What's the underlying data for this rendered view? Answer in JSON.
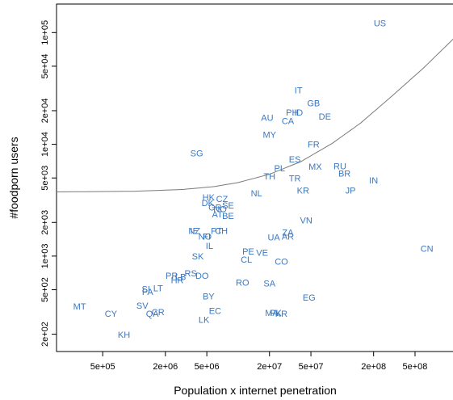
{
  "chart_data": {
    "type": "scatter",
    "title": "",
    "xlabel": "Population x internet penetration",
    "ylabel": "#foodporn users",
    "x_scale": "log",
    "y_scale": "log",
    "xlim": [
      180000,
      1200000000
    ],
    "ylim": [
      140,
      180000
    ],
    "x_ticks": [
      {
        "value": 500000,
        "label": "5e+05"
      },
      {
        "value": 2000000,
        "label": "2e+06"
      },
      {
        "value": 5000000,
        "label": "5e+06"
      },
      {
        "value": 20000000,
        "label": "2e+07"
      },
      {
        "value": 50000000,
        "label": "5e+07"
      },
      {
        "value": 200000000,
        "label": "2e+08"
      },
      {
        "value": 500000000,
        "label": "5e+08"
      }
    ],
    "y_ticks": [
      {
        "value": 200,
        "label": "2e+02"
      },
      {
        "value": 500,
        "label": "5e+02"
      },
      {
        "value": 1000,
        "label": "1e+03"
      },
      {
        "value": 2000,
        "label": "2e+03"
      },
      {
        "value": 5000,
        "label": "5e+03"
      },
      {
        "value": 10000,
        "label": "1e+04"
      },
      {
        "value": 20000,
        "label": "2e+04"
      },
      {
        "value": 50000,
        "label": "5e+04"
      },
      {
        "value": 100000,
        "label": "1e+05"
      }
    ],
    "label_color": "#3a78c2",
    "curve_color": "#7a7a7a",
    "points": [
      {
        "label": "US",
        "x": 230000000,
        "y": 120000
      },
      {
        "label": "IT",
        "x": 38000000,
        "y": 30000
      },
      {
        "label": "GB",
        "x": 53000000,
        "y": 23000
      },
      {
        "label": "AU",
        "x": 19000000,
        "y": 17000
      },
      {
        "label": "PH",
        "x": 33000000,
        "y": 19000
      },
      {
        "label": "ID",
        "x": 38000000,
        "y": 19000
      },
      {
        "label": "CA",
        "x": 30000000,
        "y": 16000
      },
      {
        "label": "DE",
        "x": 68000000,
        "y": 17500
      },
      {
        "label": "MY",
        "x": 20000000,
        "y": 12000
      },
      {
        "label": "FR",
        "x": 53000000,
        "y": 9800
      },
      {
        "label": "SG",
        "x": 4000000,
        "y": 8200
      },
      {
        "label": "ES",
        "x": 35000000,
        "y": 7200
      },
      {
        "label": "MX",
        "x": 55000000,
        "y": 6200
      },
      {
        "label": "RU",
        "x": 95000000,
        "y": 6300
      },
      {
        "label": "PL",
        "x": 25000000,
        "y": 6000
      },
      {
        "label": "BR",
        "x": 105000000,
        "y": 5400
      },
      {
        "label": "TH",
        "x": 20000000,
        "y": 5100
      },
      {
        "label": "TR",
        "x": 35000000,
        "y": 4900
      },
      {
        "label": "IN",
        "x": 200000000,
        "y": 4700
      },
      {
        "label": "KR",
        "x": 42000000,
        "y": 3800
      },
      {
        "label": "JP",
        "x": 120000000,
        "y": 3800
      },
      {
        "label": "NL",
        "x": 15000000,
        "y": 3600
      },
      {
        "label": "HK",
        "x": 5200000,
        "y": 3300
      },
      {
        "label": "CZ",
        "x": 7000000,
        "y": 3200
      },
      {
        "label": "DK",
        "x": 5100000,
        "y": 2950
      },
      {
        "label": "SE",
        "x": 8000000,
        "y": 2800
      },
      {
        "label": "GR",
        "x": 6000000,
        "y": 2680
      },
      {
        "label": "NO",
        "x": 6700000,
        "y": 2600
      },
      {
        "label": "AT",
        "x": 6300000,
        "y": 2330
      },
      {
        "label": "BE",
        "x": 8000000,
        "y": 2250
      },
      {
        "label": "VN",
        "x": 45000000,
        "y": 2050
      },
      {
        "label": "NZ",
        "x": 3800000,
        "y": 1650
      },
      {
        "label": "PT",
        "x": 6200000,
        "y": 1650
      },
      {
        "label": "CH",
        "x": 6900000,
        "y": 1650
      },
      {
        "label": "IE",
        "x": 3800000,
        "y": 1650
      },
      {
        "label": "NO",
        "x": 4800000,
        "y": 1480
      },
      {
        "label": "FI",
        "x": 5000000,
        "y": 1480
      },
      {
        "label": "ZA",
        "x": 30000000,
        "y": 1600
      },
      {
        "label": "UA",
        "x": 22000000,
        "y": 1450
      },
      {
        "label": "AR",
        "x": 30000000,
        "y": 1480
      },
      {
        "label": "IL",
        "x": 5300000,
        "y": 1220
      },
      {
        "label": "CN",
        "x": 650000000,
        "y": 1150
      },
      {
        "label": "PE",
        "x": 12500000,
        "y": 1080
      },
      {
        "label": "VE",
        "x": 17000000,
        "y": 1060
      },
      {
        "label": "SK",
        "x": 4100000,
        "y": 980
      },
      {
        "label": "CL",
        "x": 12000000,
        "y": 920
      },
      {
        "label": "CO",
        "x": 26000000,
        "y": 880
      },
      {
        "label": "RS",
        "x": 3500000,
        "y": 690
      },
      {
        "label": "PR",
        "x": 2300000,
        "y": 660
      },
      {
        "label": "LB",
        "x": 2800000,
        "y": 640
      },
      {
        "label": "DO",
        "x": 4500000,
        "y": 660
      },
      {
        "label": "HR",
        "x": 2600000,
        "y": 600
      },
      {
        "label": "RO",
        "x": 11000000,
        "y": 570
      },
      {
        "label": "SA",
        "x": 20000000,
        "y": 560
      },
      {
        "label": "SI",
        "x": 1300000,
        "y": 500
      },
      {
        "label": "LT",
        "x": 1700000,
        "y": 510
      },
      {
        "label": "PA",
        "x": 1350000,
        "y": 470
      },
      {
        "label": "BY",
        "x": 5200000,
        "y": 430
      },
      {
        "label": "EG",
        "x": 48000000,
        "y": 420
      },
      {
        "label": "MT",
        "x": 300000,
        "y": 350
      },
      {
        "label": "SV",
        "x": 1200000,
        "y": 355
      },
      {
        "label": "CY",
        "x": 600000,
        "y": 300
      },
      {
        "label": "QA",
        "x": 1500000,
        "y": 300
      },
      {
        "label": "CR",
        "x": 1700000,
        "y": 310
      },
      {
        "label": "EC",
        "x": 6000000,
        "y": 320
      },
      {
        "label": "MA",
        "x": 21000000,
        "y": 305
      },
      {
        "label": "PK",
        "x": 23000000,
        "y": 305
      },
      {
        "label": "KR",
        "x": 26000000,
        "y": 300
      },
      {
        "label": "LK",
        "x": 4700000,
        "y": 265
      },
      {
        "label": "KH",
        "x": 800000,
        "y": 195
      }
    ],
    "fit_curve": [
      {
        "x": 180000,
        "y": 3750
      },
      {
        "x": 1000000,
        "y": 3800
      },
      {
        "x": 3000000,
        "y": 3950
      },
      {
        "x": 6000000,
        "y": 4200
      },
      {
        "x": 10000000,
        "y": 4550
      },
      {
        "x": 20000000,
        "y": 5400
      },
      {
        "x": 40000000,
        "y": 7000
      },
      {
        "x": 80000000,
        "y": 10200
      },
      {
        "x": 150000000,
        "y": 15500
      },
      {
        "x": 300000000,
        "y": 27000
      },
      {
        "x": 600000000,
        "y": 48000
      },
      {
        "x": 1200000000,
        "y": 90000
      }
    ]
  }
}
